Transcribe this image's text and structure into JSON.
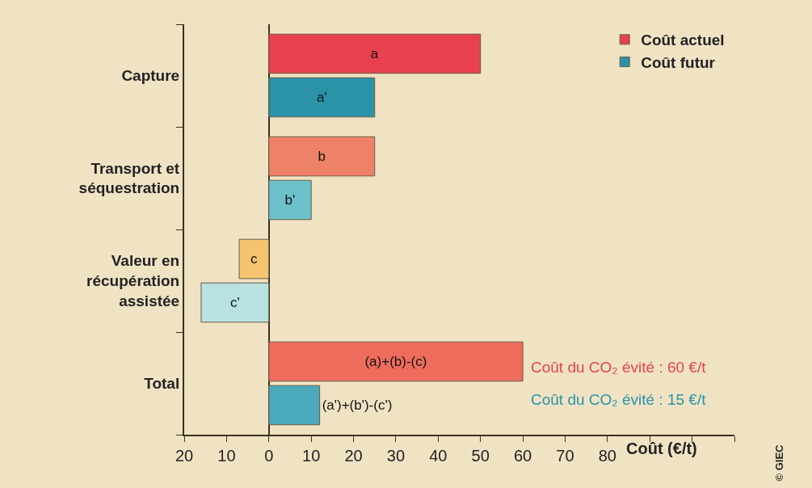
{
  "chart_data": {
    "type": "bar",
    "orientation": "horizontal",
    "categories": [
      "Capture",
      "Transport et séquestration",
      "Valeur en récupération assistée",
      "Total"
    ],
    "series": [
      {
        "name": "Coût actuel",
        "colors": [
          "#e8404f",
          "#ee8268",
          "#f5c46e",
          "#ee6c5c"
        ],
        "values": [
          50,
          25,
          -7,
          60
        ],
        "value_labels": [
          "a",
          "b",
          "c",
          "(a)+(b)-(c)"
        ]
      },
      {
        "name": "Coût futur",
        "colors": [
          "#2a93a8",
          "#6cc0cc",
          "#b8e2e2",
          "#4aaabb"
        ],
        "values": [
          25,
          10,
          -16,
          12
        ],
        "value_labels": [
          "a'",
          "b'",
          "c'",
          "(a')+(b')-(c')"
        ]
      }
    ],
    "xlim": [
      -20,
      110
    ],
    "xticks": [
      {
        "value": -20,
        "label": "20"
      },
      {
        "value": -10,
        "label": "10"
      },
      0,
      10,
      20,
      30,
      40,
      50,
      60,
      70,
      80,
      {
        "value": 90,
        "label": null
      },
      {
        "value": 100,
        "label": null
      },
      {
        "value": 110,
        "label": null
      }
    ],
    "xlabel": "Coût (€/t)",
    "legend": "top right",
    "annotations": [
      "Coût du CO₂ évité : 60 €/t",
      "Coût du CO₂ évité : 15 €/t",
      "© GIEC"
    ]
  }
}
